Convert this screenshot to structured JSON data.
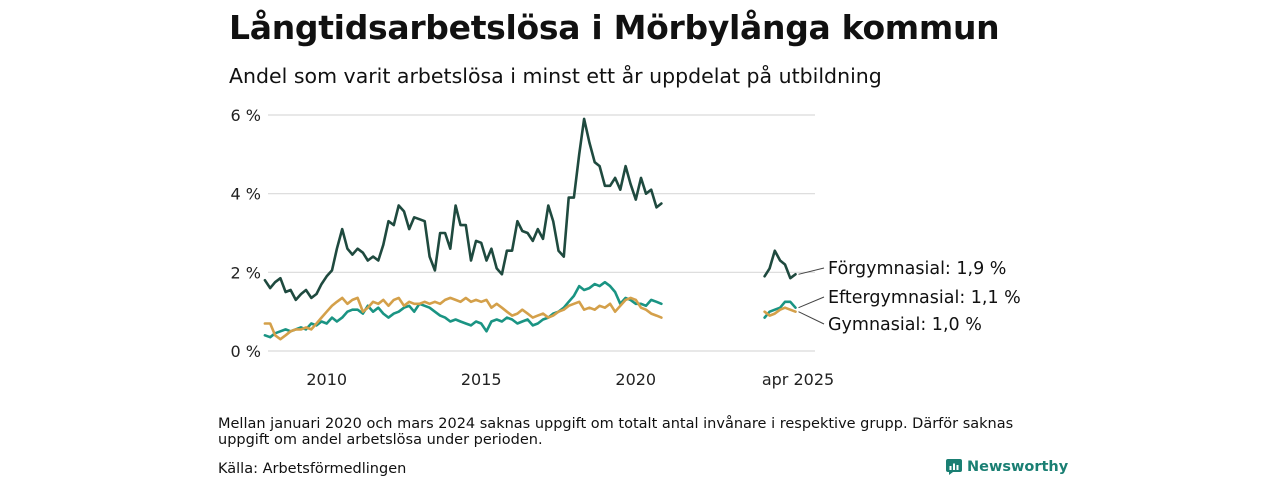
{
  "title": "Långtidsarbetslösa i Mörbylånga kommun",
  "subtitle": "Andel som varit arbetslösa i minst ett år uppdelat på utbildning",
  "note": "Mellan januari 2020 och mars 2024 saknas uppgift om totalt antal invånare i respektive grupp. Därför saknas uppgift om andel arbetslösa under perioden.",
  "source": "Källa: Arbetsförmedlingen",
  "brand": "Newsworthy",
  "chart_data": {
    "type": "line",
    "x_ticks": [
      {
        "x": 2010,
        "label": "2010"
      },
      {
        "x": 2015,
        "label": "2015"
      },
      {
        "x": 2020,
        "label": "2020"
      },
      {
        "x": 2025.25,
        "label": "apr 2025"
      }
    ],
    "y_ticks": [
      {
        "y": 0,
        "label": "0 %"
      },
      {
        "y": 2,
        "label": "2 %"
      },
      {
        "y": 4,
        "label": "4 %"
      },
      {
        "y": 6,
        "label": "6 %"
      }
    ],
    "xlim": [
      2008.1,
      2025.8
    ],
    "ylim": [
      0,
      6
    ],
    "grid": true,
    "series": [
      {
        "name": "Förgymnasial",
        "end_label": "Förgymnasial: 1,9 %",
        "color": "#1f4a3f",
        "segments": [
          [
            [
              2008.0,
              1.8
            ],
            [
              2008.17,
              1.6
            ],
            [
              2008.33,
              1.75
            ],
            [
              2008.5,
              1.85
            ],
            [
              2008.67,
              1.5
            ],
            [
              2008.83,
              1.55
            ],
            [
              2009.0,
              1.3
            ],
            [
              2009.17,
              1.45
            ],
            [
              2009.33,
              1.55
            ],
            [
              2009.5,
              1.35
            ],
            [
              2009.67,
              1.45
            ],
            [
              2009.83,
              1.7
            ],
            [
              2010.0,
              1.9
            ],
            [
              2010.17,
              2.05
            ],
            [
              2010.33,
              2.6
            ],
            [
              2010.5,
              3.1
            ],
            [
              2010.67,
              2.6
            ],
            [
              2010.83,
              2.45
            ],
            [
              2011.0,
              2.6
            ],
            [
              2011.17,
              2.5
            ],
            [
              2011.33,
              2.3
            ],
            [
              2011.5,
              2.4
            ],
            [
              2011.67,
              2.3
            ],
            [
              2011.83,
              2.7
            ],
            [
              2012.0,
              3.3
            ],
            [
              2012.17,
              3.2
            ],
            [
              2012.33,
              3.7
            ],
            [
              2012.5,
              3.55
            ],
            [
              2012.67,
              3.1
            ],
            [
              2012.83,
              3.4
            ],
            [
              2013.0,
              3.35
            ],
            [
              2013.17,
              3.3
            ],
            [
              2013.33,
              2.4
            ],
            [
              2013.5,
              2.05
            ],
            [
              2013.67,
              3.0
            ],
            [
              2013.83,
              3.0
            ],
            [
              2014.0,
              2.6
            ],
            [
              2014.17,
              3.7
            ],
            [
              2014.33,
              3.2
            ],
            [
              2014.5,
              3.2
            ],
            [
              2014.67,
              2.3
            ],
            [
              2014.83,
              2.8
            ],
            [
              2015.0,
              2.75
            ],
            [
              2015.17,
              2.3
            ],
            [
              2015.33,
              2.6
            ],
            [
              2015.5,
              2.1
            ],
            [
              2015.67,
              1.95
            ],
            [
              2015.83,
              2.55
            ],
            [
              2016.0,
              2.55
            ],
            [
              2016.17,
              3.3
            ],
            [
              2016.33,
              3.05
            ],
            [
              2016.5,
              3.0
            ],
            [
              2016.67,
              2.8
            ],
            [
              2016.83,
              3.1
            ],
            [
              2017.0,
              2.85
            ],
            [
              2017.17,
              3.7
            ],
            [
              2017.33,
              3.3
            ],
            [
              2017.5,
              2.55
            ],
            [
              2017.67,
              2.4
            ],
            [
              2017.83,
              3.9
            ],
            [
              2018.0,
              3.9
            ],
            [
              2018.17,
              5.0
            ],
            [
              2018.33,
              5.9
            ],
            [
              2018.5,
              5.3
            ],
            [
              2018.67,
              4.8
            ],
            [
              2018.83,
              4.7
            ],
            [
              2019.0,
              4.2
            ],
            [
              2019.17,
              4.2
            ],
            [
              2019.33,
              4.4
            ],
            [
              2019.5,
              4.1
            ],
            [
              2019.67,
              4.7
            ],
            [
              2019.83,
              4.25
            ],
            [
              2020.0,
              3.85
            ],
            [
              2020.17,
              4.4
            ],
            [
              2020.33,
              4.0
            ],
            [
              2020.5,
              4.1
            ],
            [
              2020.67,
              3.65
            ],
            [
              2020.83,
              3.75
            ]
          ],
          [
            [
              2024.17,
              1.9
            ],
            [
              2024.33,
              2.1
            ],
            [
              2024.5,
              2.55
            ],
            [
              2024.67,
              2.3
            ],
            [
              2024.83,
              2.2
            ],
            [
              2025.0,
              1.85
            ],
            [
              2025.17,
              1.95
            ]
          ]
        ]
      },
      {
        "name": "Eftergymnasial",
        "end_label": "Eftergymnasial: 1,1 %",
        "color": "#1a9483",
        "segments": [
          [
            [
              2008.0,
              0.4
            ],
            [
              2008.17,
              0.35
            ],
            [
              2008.33,
              0.45
            ],
            [
              2008.5,
              0.5
            ],
            [
              2008.67,
              0.55
            ],
            [
              2008.83,
              0.5
            ],
            [
              2009.0,
              0.55
            ],
            [
              2009.17,
              0.6
            ],
            [
              2009.33,
              0.55
            ],
            [
              2009.5,
              0.7
            ],
            [
              2009.67,
              0.65
            ],
            [
              2009.83,
              0.75
            ],
            [
              2010.0,
              0.7
            ],
            [
              2010.17,
              0.85
            ],
            [
              2010.33,
              0.75
            ],
            [
              2010.5,
              0.85
            ],
            [
              2010.67,
              1.0
            ],
            [
              2010.83,
              1.05
            ],
            [
              2011.0,
              1.05
            ],
            [
              2011.17,
              0.95
            ],
            [
              2011.33,
              1.15
            ],
            [
              2011.5,
              1.0
            ],
            [
              2011.67,
              1.1
            ],
            [
              2011.83,
              0.95
            ],
            [
              2012.0,
              0.85
            ],
            [
              2012.17,
              0.95
            ],
            [
              2012.33,
              1.0
            ],
            [
              2012.5,
              1.1
            ],
            [
              2012.67,
              1.15
            ],
            [
              2012.83,
              1.0
            ],
            [
              2013.0,
              1.2
            ],
            [
              2013.17,
              1.15
            ],
            [
              2013.33,
              1.1
            ],
            [
              2013.5,
              1.0
            ],
            [
              2013.67,
              0.9
            ],
            [
              2013.83,
              0.85
            ],
            [
              2014.0,
              0.75
            ],
            [
              2014.17,
              0.8
            ],
            [
              2014.33,
              0.75
            ],
            [
              2014.5,
              0.7
            ],
            [
              2014.67,
              0.65
            ],
            [
              2014.83,
              0.75
            ],
            [
              2015.0,
              0.7
            ],
            [
              2015.17,
              0.5
            ],
            [
              2015.33,
              0.75
            ],
            [
              2015.5,
              0.8
            ],
            [
              2015.67,
              0.75
            ],
            [
              2015.83,
              0.85
            ],
            [
              2016.0,
              0.8
            ],
            [
              2016.17,
              0.7
            ],
            [
              2016.33,
              0.75
            ],
            [
              2016.5,
              0.8
            ],
            [
              2016.67,
              0.65
            ],
            [
              2016.83,
              0.7
            ],
            [
              2017.0,
              0.8
            ],
            [
              2017.17,
              0.85
            ],
            [
              2017.33,
              0.95
            ],
            [
              2017.5,
              1.0
            ],
            [
              2017.67,
              1.1
            ],
            [
              2017.83,
              1.25
            ],
            [
              2018.0,
              1.4
            ],
            [
              2018.17,
              1.65
            ],
            [
              2018.33,
              1.55
            ],
            [
              2018.5,
              1.6
            ],
            [
              2018.67,
              1.7
            ],
            [
              2018.83,
              1.65
            ],
            [
              2019.0,
              1.75
            ],
            [
              2019.17,
              1.65
            ],
            [
              2019.33,
              1.5
            ],
            [
              2019.5,
              1.2
            ],
            [
              2019.67,
              1.35
            ],
            [
              2019.83,
              1.3
            ],
            [
              2020.0,
              1.2
            ],
            [
              2020.17,
              1.2
            ],
            [
              2020.33,
              1.15
            ],
            [
              2020.5,
              1.3
            ],
            [
              2020.67,
              1.25
            ],
            [
              2020.83,
              1.2
            ]
          ],
          [
            [
              2024.17,
              0.85
            ],
            [
              2024.33,
              1.0
            ],
            [
              2024.5,
              1.05
            ],
            [
              2024.67,
              1.1
            ],
            [
              2024.83,
              1.25
            ],
            [
              2025.0,
              1.25
            ],
            [
              2025.17,
              1.1
            ]
          ]
        ]
      },
      {
        "name": "Gymnasial",
        "end_label": "Gymnasial: 1,0 %",
        "color": "#d4a04a",
        "segments": [
          [
            [
              2008.0,
              0.7
            ],
            [
              2008.17,
              0.7
            ],
            [
              2008.33,
              0.4
            ],
            [
              2008.5,
              0.3
            ],
            [
              2008.67,
              0.4
            ],
            [
              2008.83,
              0.5
            ],
            [
              2009.0,
              0.55
            ],
            [
              2009.17,
              0.55
            ],
            [
              2009.33,
              0.6
            ],
            [
              2009.5,
              0.55
            ],
            [
              2009.67,
              0.7
            ],
            [
              2009.83,
              0.85
            ],
            [
              2010.0,
              1.0
            ],
            [
              2010.17,
              1.15
            ],
            [
              2010.33,
              1.25
            ],
            [
              2010.5,
              1.35
            ],
            [
              2010.67,
              1.2
            ],
            [
              2010.83,
              1.3
            ],
            [
              2011.0,
              1.35
            ],
            [
              2011.17,
              1.0
            ],
            [
              2011.33,
              1.1
            ],
            [
              2011.5,
              1.25
            ],
            [
              2011.67,
              1.2
            ],
            [
              2011.83,
              1.3
            ],
            [
              2012.0,
              1.15
            ],
            [
              2012.17,
              1.3
            ],
            [
              2012.33,
              1.35
            ],
            [
              2012.5,
              1.15
            ],
            [
              2012.67,
              1.25
            ],
            [
              2012.83,
              1.2
            ],
            [
              2013.0,
              1.2
            ],
            [
              2013.17,
              1.25
            ],
            [
              2013.33,
              1.2
            ],
            [
              2013.5,
              1.25
            ],
            [
              2013.67,
              1.2
            ],
            [
              2013.83,
              1.3
            ],
            [
              2014.0,
              1.35
            ],
            [
              2014.17,
              1.3
            ],
            [
              2014.33,
              1.25
            ],
            [
              2014.5,
              1.35
            ],
            [
              2014.67,
              1.25
            ],
            [
              2014.83,
              1.3
            ],
            [
              2015.0,
              1.25
            ],
            [
              2015.17,
              1.3
            ],
            [
              2015.33,
              1.1
            ],
            [
              2015.5,
              1.2
            ],
            [
              2015.67,
              1.1
            ],
            [
              2015.83,
              1.0
            ],
            [
              2016.0,
              0.9
            ],
            [
              2016.17,
              0.95
            ],
            [
              2016.33,
              1.05
            ],
            [
              2016.5,
              0.95
            ],
            [
              2016.67,
              0.85
            ],
            [
              2016.83,
              0.9
            ],
            [
              2017.0,
              0.95
            ],
            [
              2017.17,
              0.85
            ],
            [
              2017.33,
              0.9
            ],
            [
              2017.5,
              1.0
            ],
            [
              2017.67,
              1.05
            ],
            [
              2017.83,
              1.15
            ],
            [
              2018.0,
              1.2
            ],
            [
              2018.17,
              1.25
            ],
            [
              2018.33,
              1.05
            ],
            [
              2018.5,
              1.1
            ],
            [
              2018.67,
              1.05
            ],
            [
              2018.83,
              1.15
            ],
            [
              2019.0,
              1.1
            ],
            [
              2019.17,
              1.2
            ],
            [
              2019.33,
              1.0
            ],
            [
              2019.5,
              1.15
            ],
            [
              2019.67,
              1.3
            ],
            [
              2019.83,
              1.35
            ],
            [
              2020.0,
              1.3
            ],
            [
              2020.17,
              1.1
            ],
            [
              2020.33,
              1.05
            ],
            [
              2020.5,
              0.95
            ],
            [
              2020.67,
              0.9
            ],
            [
              2020.83,
              0.85
            ]
          ],
          [
            [
              2024.17,
              1.0
            ],
            [
              2024.33,
              0.9
            ],
            [
              2024.5,
              0.95
            ],
            [
              2024.67,
              1.05
            ],
            [
              2024.83,
              1.1
            ],
            [
              2025.0,
              1.05
            ],
            [
              2025.17,
              1.0
            ]
          ]
        ]
      }
    ]
  }
}
